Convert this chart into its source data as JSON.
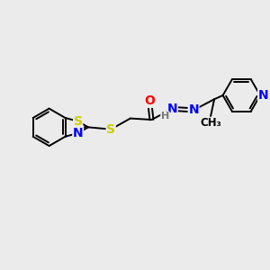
{
  "background_color": "#ebebeb",
  "bond_color": "#000000",
  "atom_colors": {
    "S": "#cccc00",
    "N": "#0000ff",
    "O": "#ff0000",
    "H": "#777777",
    "C": "#000000"
  },
  "figsize": [
    3.0,
    3.0
  ],
  "dpi": 100
}
